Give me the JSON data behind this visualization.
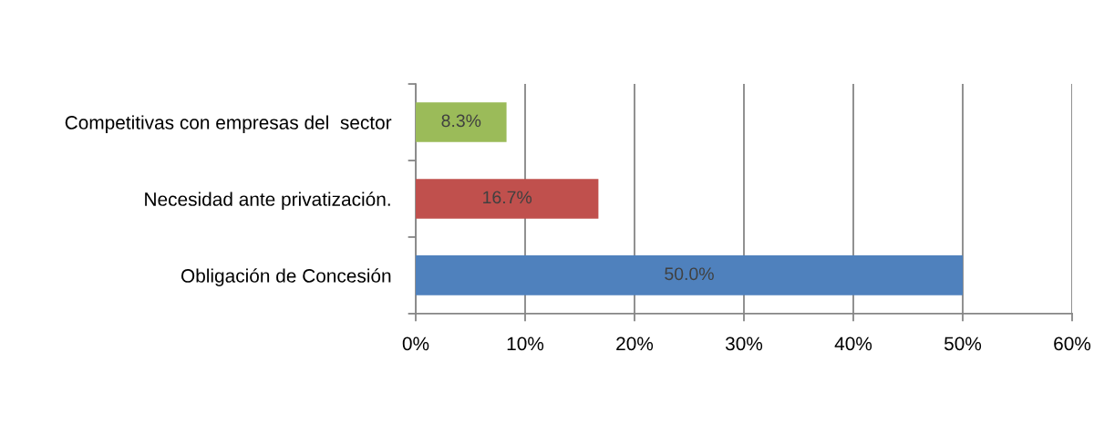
{
  "chart_data": {
    "type": "bar",
    "orientation": "horizontal",
    "categories": [
      "Competitivas con empresas del  sector",
      "Necesidad ante privatización.",
      "Obligación de Concesión"
    ],
    "values": [
      8.3,
      16.7,
      50.0
    ],
    "colors": [
      "#9bbb59",
      "#c0504d",
      "#4f81bd"
    ],
    "value_labels": [
      "8.3%",
      "16.7%",
      "50.0%"
    ],
    "xlim": [
      0,
      60
    ],
    "xticks": [
      {
        "value": 0,
        "label": "0%"
      },
      {
        "value": 10,
        "label": "10%"
      },
      {
        "value": 20,
        "label": "20%"
      },
      {
        "value": 30,
        "label": "30%"
      },
      {
        "value": 40,
        "label": "40%"
      },
      {
        "value": 50,
        "label": "50%"
      },
      {
        "value": 60,
        "label": "60%"
      }
    ],
    "grid": "x"
  }
}
